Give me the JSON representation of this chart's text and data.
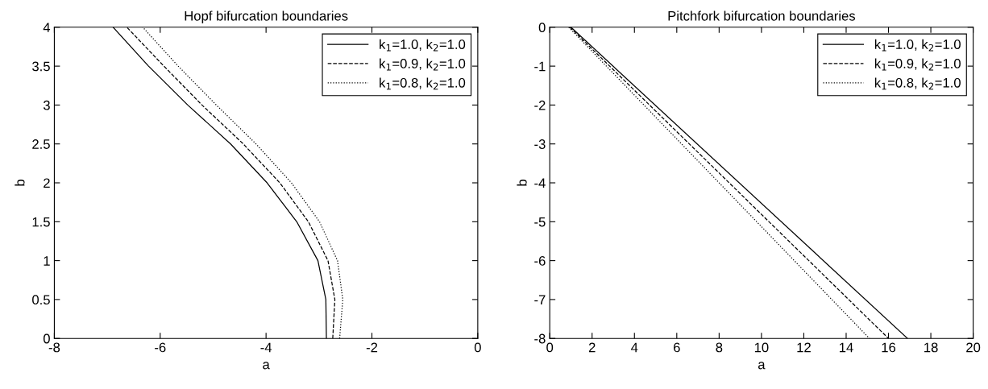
{
  "chart_data": [
    {
      "type": "line",
      "title": "Hopf bifurcation boundaries",
      "xlabel": "a",
      "ylabel": "b",
      "xlim": [
        -8,
        0
      ],
      "xticks": [
        -8,
        -6,
        -4,
        -2,
        0
      ],
      "ylim": [
        0,
        4
      ],
      "yticks": [
        0,
        0.5,
        1,
        1.5,
        2,
        2.5,
        3,
        3.5,
        4
      ],
      "grid": false,
      "legend": "top right",
      "marker": "none",
      "series": [
        {
          "name": "k$_{1}$=1.0, k$_{2}$=1.0",
          "color": "#000000",
          "line_style": "solid",
          "x": [
            -2.86,
            -2.87,
            -3.02,
            -3.42,
            -3.98,
            -4.67,
            -5.48,
            -6.22,
            -6.89
          ],
          "values": [
            0,
            0.5,
            1,
            1.5,
            2,
            2.5,
            3,
            3.5,
            4
          ]
        },
        {
          "name": "k$_{1}$=0.9, k$_{2}$=1.0",
          "color": "#000000",
          "line_style": "dashed",
          "x": [
            -2.74,
            -2.7,
            -2.83,
            -3.2,
            -3.74,
            -4.43,
            -5.21,
            -5.93,
            -6.63
          ],
          "values": [
            0,
            0.5,
            1,
            1.5,
            2,
            2.5,
            3,
            3.5,
            4
          ]
        },
        {
          "name": "k$_{1}$=0.8, k$_{2}$=1.0",
          "color": "#000000",
          "line_style": "dotted",
          "x": [
            -2.61,
            -2.55,
            -2.65,
            -2.99,
            -3.52,
            -4.19,
            -4.94,
            -5.66,
            -6.33
          ],
          "values": [
            0,
            0.5,
            1,
            1.5,
            2,
            2.5,
            3,
            3.5,
            4
          ]
        }
      ]
    },
    {
      "type": "line",
      "title": "Pitchfork bifurcation boundaries",
      "xlabel": "a",
      "ylabel": "b",
      "xlim": [
        0,
        20
      ],
      "xticks": [
        0,
        2,
        4,
        6,
        8,
        10,
        12,
        14,
        16,
        18,
        20
      ],
      "ylim": [
        -8,
        0
      ],
      "yticks": [
        -8,
        -7,
        -6,
        -5,
        -4,
        -3,
        -2,
        -1,
        0
      ],
      "grid": false,
      "legend": "top right",
      "marker": "none",
      "series": [
        {
          "name": "k$_{1}$=1.0, k$_{2}$=1.0",
          "color": "#000000",
          "line_style": "solid",
          "x": [
            1.0,
            16.9
          ],
          "values": [
            0,
            -8
          ]
        },
        {
          "name": "k$_{1}$=0.9, k$_{2}$=1.0",
          "color": "#000000",
          "line_style": "dashed",
          "x": [
            0.95,
            16.0
          ],
          "values": [
            0,
            -8
          ]
        },
        {
          "name": "k$_{1}$=0.8, k$_{2}$=1.0",
          "color": "#000000",
          "line_style": "dotted",
          "x": [
            0.9,
            15.1
          ],
          "values": [
            0,
            -8
          ]
        }
      ]
    }
  ]
}
